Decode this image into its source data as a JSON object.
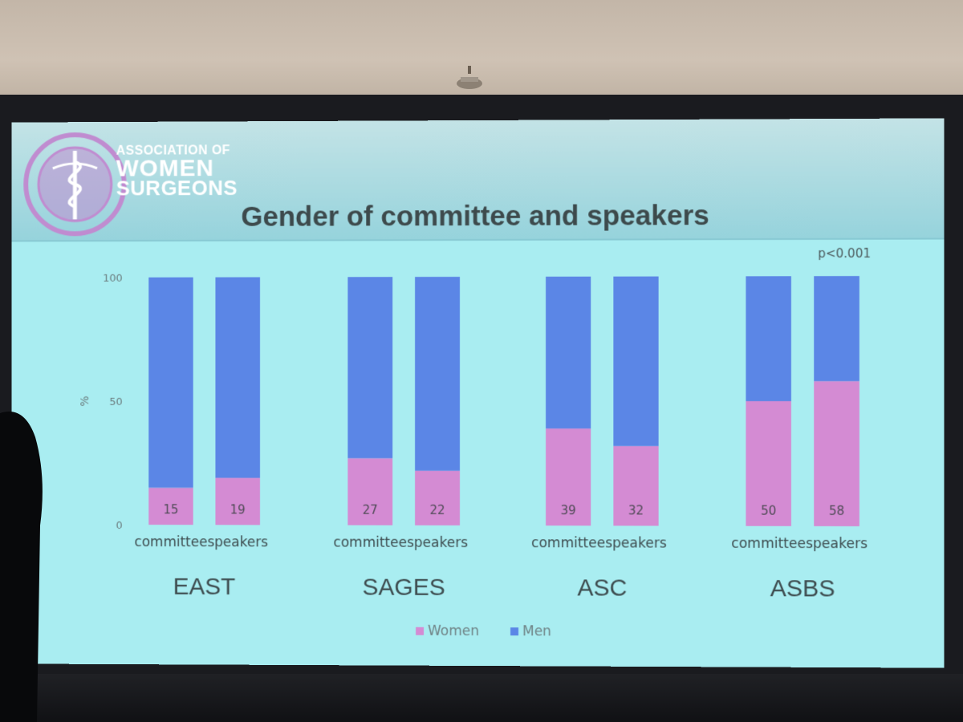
{
  "slide": {
    "org_line1": "ASSOCIATION OF",
    "org_line2": "WOMEN",
    "org_line3": "SURGEONS",
    "title": "Gender of committee and speakers",
    "p_value": "p<0.001"
  },
  "colors": {
    "women": "#d48bd3",
    "men": "#5b86e6",
    "screen_bg": "#a9edf1",
    "seal": "#c08cd0"
  },
  "chart_data": {
    "type": "bar",
    "stacked": true,
    "ylabel": "%",
    "ylim": [
      0,
      100
    ],
    "yticks": [
      0,
      50,
      100
    ],
    "groups": [
      {
        "name": "EAST",
        "categories": [
          "committee",
          "speakers"
        ]
      },
      {
        "name": "SAGES",
        "categories": [
          "committee",
          "speakers"
        ]
      },
      {
        "name": "ASC",
        "categories": [
          "committee",
          "speakers"
        ]
      },
      {
        "name": "ASBS",
        "categories": [
          "committee",
          "speakers"
        ]
      }
    ],
    "series": [
      {
        "name": "Women",
        "values": [
          15,
          19,
          27,
          22,
          39,
          32,
          50,
          58
        ],
        "show_labels": true
      },
      {
        "name": "Men",
        "values": [
          85,
          81,
          73,
          78,
          61,
          68,
          50,
          42
        ],
        "show_labels": false
      }
    ],
    "legend": "bottom-center"
  }
}
